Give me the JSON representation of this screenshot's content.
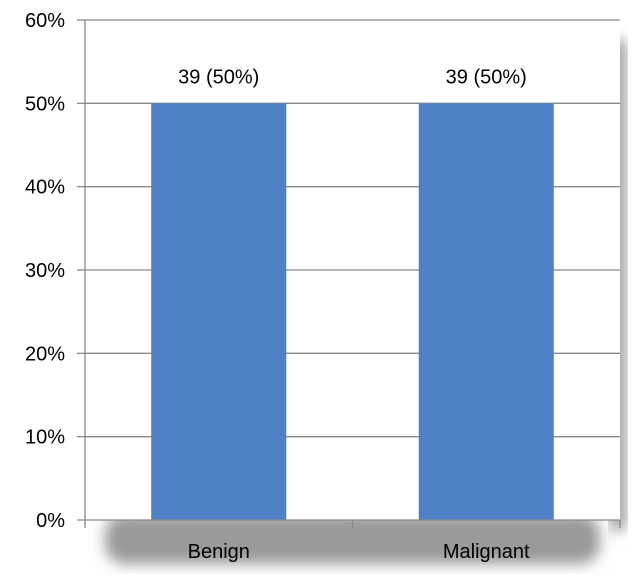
{
  "chart_data": {
    "type": "bar",
    "title": "",
    "xlabel": "",
    "ylabel": "",
    "categories": [
      "Benign",
      "Malignant"
    ],
    "values": [
      50,
      50
    ],
    "data_labels": [
      "39 (50%)",
      "39 (50%)"
    ],
    "ylim": [
      0,
      60
    ],
    "y_ticks": [
      0,
      10,
      20,
      30,
      40,
      50,
      60
    ],
    "y_tick_labels": [
      "0%",
      "10%",
      "20%",
      "30%",
      "40%",
      "50%",
      "60%"
    ],
    "grid": true,
    "legend": "none",
    "colors": {
      "bar": "#4f81c7",
      "grid": "#898989",
      "axis": "#898989",
      "shadow": "#9a9a9a"
    }
  }
}
